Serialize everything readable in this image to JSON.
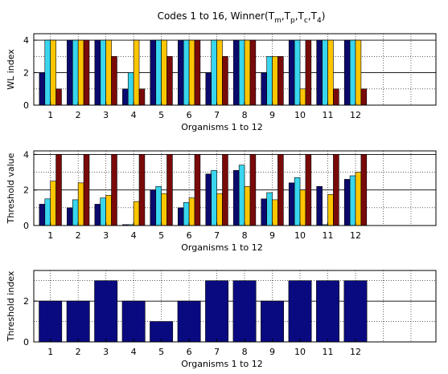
{
  "title_parts": {
    "prefix": "Codes 1 to 16, Winner(T",
    "m": "m",
    "sep1": ",T",
    "p": "p",
    "sep2": ",T",
    "c": "c",
    "sep3": ",T",
    "four": "4",
    "suffix": ")"
  },
  "chart_data": [
    {
      "type": "bar",
      "ylabel": "WL index",
      "xlabel": "Organisms 1 to 12",
      "categories": [
        "1",
        "2",
        "3",
        "4",
        "5",
        "6",
        "7",
        "8",
        "9",
        "10",
        "11",
        "12"
      ],
      "xlim": [
        0.4,
        14.9
      ],
      "ylim": [
        0,
        4.4
      ],
      "yticks": [
        0,
        2,
        4
      ],
      "grid": true,
      "series": [
        {
          "color": "#0a0a6e",
          "values": [
            2,
            4,
            4,
            1,
            4,
            4,
            2,
            4,
            2,
            4,
            4,
            4
          ]
        },
        {
          "color": "#38d6ee",
          "values": [
            4,
            4,
            4,
            2,
            4,
            4,
            4,
            4,
            3,
            4,
            4,
            4
          ]
        },
        {
          "color": "#ffc600",
          "values": [
            4,
            4,
            4,
            4,
            4,
            4,
            4,
            4,
            3,
            1,
            4,
            4
          ]
        },
        {
          "color": "#7a0a0a",
          "values": [
            1,
            4,
            3,
            1,
            3,
            4,
            3,
            4,
            3,
            4,
            1,
            1
          ]
        }
      ]
    },
    {
      "type": "bar",
      "ylabel": "Threshold value",
      "xlabel": "Organisms 1 to 12",
      "categories": [
        "1",
        "2",
        "3",
        "4",
        "5",
        "6",
        "7",
        "8",
        "9",
        "10",
        "11",
        "12"
      ],
      "xlim": [
        0.4,
        14.9
      ],
      "ylim": [
        0,
        4.2
      ],
      "yticks": [
        0,
        2,
        4
      ],
      "grid": true,
      "series": [
        {
          "color": "#0a0a6e",
          "values": [
            1.2,
            1.0,
            1.2,
            0.05,
            2.0,
            1.0,
            2.9,
            3.1,
            1.5,
            2.4,
            2.2,
            2.6
          ]
        },
        {
          "color": "#38d6ee",
          "values": [
            1.5,
            1.45,
            1.55,
            0.05,
            2.2,
            1.3,
            3.1,
            3.4,
            1.85,
            2.7,
            0.05,
            2.8
          ]
        },
        {
          "color": "#ffc600",
          "values": [
            2.5,
            2.4,
            1.7,
            1.35,
            1.8,
            1.55,
            1.8,
            2.2,
            1.45,
            2.0,
            1.75,
            3.0
          ]
        },
        {
          "color": "#7a0a0a",
          "values": [
            4,
            4,
            4,
            4,
            4,
            4,
            4,
            4,
            4,
            4,
            4,
            4
          ]
        }
      ]
    },
    {
      "type": "bar",
      "ylabel": "Threshold index",
      "xlabel": "Organisms 1 to 12",
      "categories": [
        "1",
        "2",
        "3",
        "4",
        "5",
        "6",
        "7",
        "8",
        "9",
        "10",
        "11",
        "12"
      ],
      "xlim": [
        0.4,
        14.9
      ],
      "ylim": [
        0,
        3.5
      ],
      "yticks": [
        0,
        2
      ],
      "grid": true,
      "series": [
        {
          "color": "#0a0a80",
          "values": [
            2,
            2,
            3,
            2,
            1,
            2,
            3,
            3,
            2,
            3,
            3,
            3
          ]
        }
      ]
    }
  ]
}
